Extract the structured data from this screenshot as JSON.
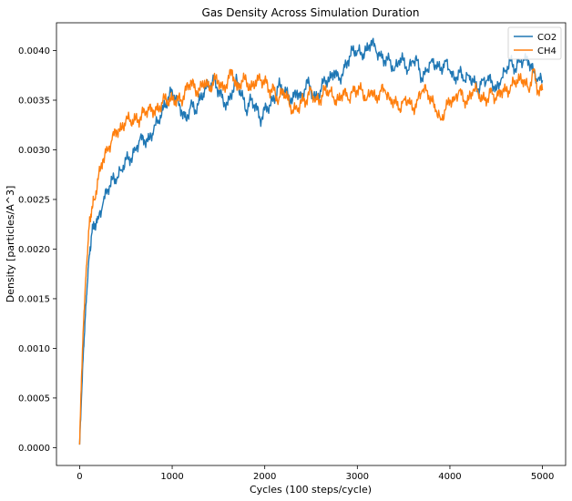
{
  "chart_data": {
    "type": "line",
    "title": "Gas Density Across Simulation Duration",
    "xlabel": "Cycles (100 steps/cycle)",
    "ylabel": "Density [particles/A^3]",
    "xlim": [
      -250,
      5250
    ],
    "ylim": [
      -0.00018,
      0.00428
    ],
    "xticks": [
      0,
      1000,
      2000,
      3000,
      4000,
      5000
    ],
    "xtick_labels": [
      "0",
      "1000",
      "2000",
      "3000",
      "4000",
      "5000"
    ],
    "yticks": [
      0.0,
      0.0005,
      0.001,
      0.0015,
      0.002,
      0.0025,
      0.003,
      0.0035,
      0.004
    ],
    "ytick_labels": [
      "0.0000",
      "0.0005",
      "0.0010",
      "0.0015",
      "0.0020",
      "0.0025",
      "0.0030",
      "0.0035",
      "0.0040"
    ],
    "grid": false,
    "legend_position": "top-right",
    "series": [
      {
        "name": "CO2",
        "color": "#1f77b4",
        "x": [
          0,
          20,
          40,
          60,
          80,
          100,
          130,
          160,
          200,
          250,
          300,
          350,
          400,
          450,
          500,
          550,
          600,
          650,
          700,
          750,
          800,
          850,
          900,
          950,
          1000,
          1050,
          1100,
          1150,
          1200,
          1250,
          1300,
          1350,
          1400,
          1450,
          1500,
          1550,
          1600,
          1650,
          1700,
          1750,
          1800,
          1850,
          1900,
          1950,
          2000,
          2050,
          2100,
          2150,
          2200,
          2250,
          2300,
          2350,
          2400,
          2450,
          2500,
          2550,
          2600,
          2650,
          2700,
          2750,
          2800,
          2850,
          2900,
          2950,
          3000,
          3050,
          3100,
          3150,
          3200,
          3250,
          3300,
          3350,
          3400,
          3450,
          3500,
          3550,
          3600,
          3650,
          3700,
          3750,
          3800,
          3850,
          3900,
          3950,
          4000,
          4050,
          4100,
          4150,
          4200,
          4250,
          4300,
          4350,
          4400,
          4450,
          4500,
          4550,
          4600,
          4650,
          4700,
          4750,
          4800,
          4850,
          4900,
          4950,
          5000
        ],
        "y": [
          3e-05,
          0.0005,
          0.00095,
          0.0013,
          0.0016,
          0.0019,
          0.00215,
          0.00225,
          0.0023,
          0.00245,
          0.0026,
          0.0027,
          0.0027,
          0.0028,
          0.0029,
          0.0029,
          0.003,
          0.0031,
          0.0031,
          0.0031,
          0.0032,
          0.0033,
          0.0034,
          0.0035,
          0.0036,
          0.0035,
          0.0034,
          0.0033,
          0.00345,
          0.0034,
          0.0035,
          0.0036,
          0.00365,
          0.0037,
          0.0036,
          0.0035,
          0.00345,
          0.0036,
          0.0037,
          0.00355,
          0.0034,
          0.0035,
          0.00345,
          0.0033,
          0.0034,
          0.00345,
          0.0035,
          0.00365,
          0.0036,
          0.00355,
          0.0035,
          0.0036,
          0.0035,
          0.0037,
          0.0036,
          0.0035,
          0.0036,
          0.0037,
          0.0037,
          0.0038,
          0.0037,
          0.0038,
          0.0039,
          0.004,
          0.004,
          0.00395,
          0.004,
          0.0041,
          0.004,
          0.00395,
          0.0039,
          0.0039,
          0.0038,
          0.0039,
          0.0039,
          0.0038,
          0.0039,
          0.0039,
          0.0037,
          0.0038,
          0.0039,
          0.00385,
          0.0038,
          0.0039,
          0.0038,
          0.0037,
          0.0038,
          0.0037,
          0.00375,
          0.0037,
          0.0036,
          0.0037,
          0.0037,
          0.0037,
          0.0036,
          0.0037,
          0.0038,
          0.0039,
          0.0038,
          0.0039,
          0.0039,
          0.0039,
          0.0038,
          0.0037,
          0.0037
        ]
      },
      {
        "name": "CH4",
        "color": "#ff7f0e",
        "x": [
          0,
          20,
          40,
          60,
          80,
          100,
          130,
          160,
          200,
          250,
          300,
          350,
          400,
          450,
          500,
          550,
          600,
          650,
          700,
          750,
          800,
          850,
          900,
          950,
          1000,
          1050,
          1100,
          1150,
          1200,
          1250,
          1300,
          1350,
          1400,
          1450,
          1500,
          1550,
          1600,
          1650,
          1700,
          1750,
          1800,
          1850,
          1900,
          1950,
          2000,
          2050,
          2100,
          2150,
          2200,
          2250,
          2300,
          2350,
          2400,
          2450,
          2500,
          2550,
          2600,
          2650,
          2700,
          2750,
          2800,
          2850,
          2900,
          2950,
          3000,
          3050,
          3100,
          3150,
          3200,
          3250,
          3300,
          3350,
          3400,
          3450,
          3500,
          3550,
          3600,
          3650,
          3700,
          3750,
          3800,
          3850,
          3900,
          3950,
          4000,
          4050,
          4100,
          4150,
          4200,
          4250,
          4300,
          4350,
          4400,
          4450,
          4500,
          4550,
          4600,
          4650,
          4700,
          4750,
          4800,
          4850,
          4900,
          4950,
          5000
        ],
        "y": [
          3e-05,
          0.0007,
          0.0012,
          0.0016,
          0.0019,
          0.0022,
          0.0024,
          0.0025,
          0.0027,
          0.0029,
          0.003,
          0.0031,
          0.0032,
          0.0032,
          0.0033,
          0.0033,
          0.0033,
          0.0033,
          0.0034,
          0.0034,
          0.0034,
          0.0034,
          0.0035,
          0.0035,
          0.0035,
          0.0035,
          0.0035,
          0.0036,
          0.0037,
          0.0036,
          0.0036,
          0.0037,
          0.0036,
          0.0037,
          0.0037,
          0.0036,
          0.0037,
          0.0038,
          0.0036,
          0.0037,
          0.0037,
          0.0036,
          0.0037,
          0.0037,
          0.0037,
          0.0036,
          0.0036,
          0.0035,
          0.0036,
          0.0035,
          0.0034,
          0.0034,
          0.0035,
          0.0035,
          0.0036,
          0.0035,
          0.0035,
          0.0036,
          0.0036,
          0.0035,
          0.0035,
          0.0036,
          0.0035,
          0.0036,
          0.0036,
          0.0036,
          0.0035,
          0.0036,
          0.0035,
          0.0036,
          0.0036,
          0.0035,
          0.0035,
          0.0034,
          0.0035,
          0.0035,
          0.0034,
          0.0035,
          0.0036,
          0.0036,
          0.0035,
          0.0034,
          0.0033,
          0.0034,
          0.0035,
          0.0035,
          0.0036,
          0.0035,
          0.0035,
          0.0036,
          0.0036,
          0.0035,
          0.0035,
          0.0036,
          0.0035,
          0.0036,
          0.0036,
          0.0036,
          0.0037,
          0.0037,
          0.0037,
          0.0036,
          0.0038,
          0.0036,
          0.0036
        ]
      }
    ]
  }
}
